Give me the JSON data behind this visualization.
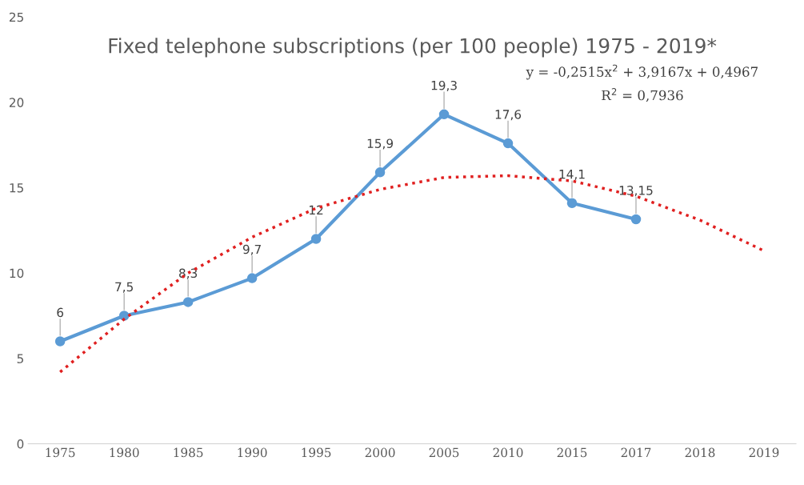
{
  "chart_data": {
    "type": "line",
    "title": "Fixed telephone subscriptions (per 100 people) 1975 - 2019*",
    "categories": [
      "1975",
      "1980",
      "1985",
      "1990",
      "1995",
      "2000",
      "2005",
      "2010",
      "2015",
      "2017",
      "2018",
      "2019"
    ],
    "series": [
      {
        "color": "#5b9bd5",
        "marker": "circle",
        "line_style": "solid",
        "values": [
          6,
          7.5,
          8.3,
          9.7,
          12,
          15.9,
          19.3,
          17.6,
          14.1,
          13.15,
          null,
          null
        ],
        "value_labels": [
          "6",
          "7,5",
          "8,3",
          "9,7",
          "12",
          "15,9",
          "19,3",
          "17,6",
          "14,1",
          "13,15",
          null,
          null
        ]
      },
      {
        "color": "#e02020",
        "marker": "none",
        "line_style": "dotted",
        "values": [
          4.2,
          7.3,
          10.0,
          12.1,
          13.8,
          14.9,
          15.6,
          15.7,
          15.4,
          14.5,
          13.1,
          11.3
        ]
      }
    ],
    "annotations": [
      "y = -0,2515x$^{2}$ + 3,9167x + 0,4967",
      "R$^{2}$ = 0,7936"
    ],
    "ylim": [
      0,
      25
    ],
    "yticks": [
      0,
      5,
      10,
      15,
      20,
      25
    ],
    "grid": false,
    "legend": false
  }
}
